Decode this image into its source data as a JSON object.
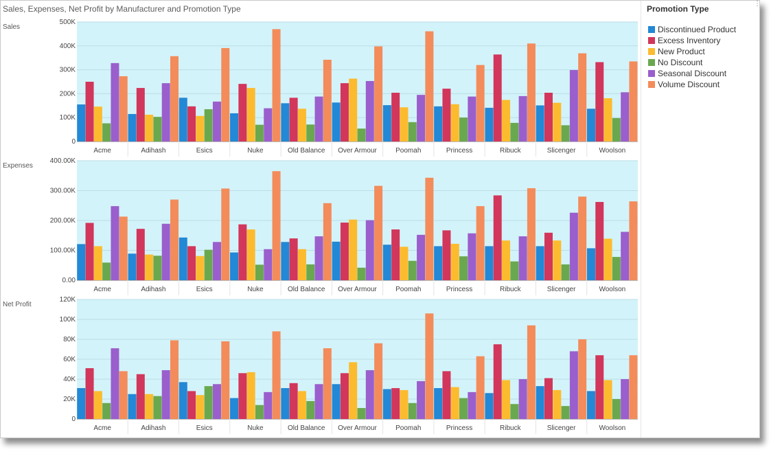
{
  "title": "Sales, Expenses, Net Profit by Manufacturer and Promotion Type",
  "legend": {
    "title": "Promotion Type",
    "items": [
      {
        "label": "Discontinued Product",
        "color": "#2388d5"
      },
      {
        "label": "Excess Inventory",
        "color": "#d2365b"
      },
      {
        "label": "New Product",
        "color": "#fcbb2f"
      },
      {
        "label": "No Discount",
        "color": "#6aa84f"
      },
      {
        "label": "Seasonal Discount",
        "color": "#9a5fcc"
      },
      {
        "label": "Volume Discount",
        "color": "#f38c5a"
      }
    ]
  },
  "plot_background": "#d3f3fa",
  "chart_data": [
    {
      "type": "bar",
      "ylabel": "Sales",
      "ylim": [
        0,
        500000
      ],
      "yticks": [
        "0",
        "100K",
        "200K",
        "300K",
        "400K",
        "500K"
      ],
      "categories": [
        "Acme",
        "Adihash",
        "Esics",
        "Nuke",
        "Old Balance",
        "Over Armour",
        "Poomah",
        "Princess",
        "Ribuck",
        "Slicenger",
        "Woolson"
      ],
      "series": [
        {
          "name": "Discontinued Product",
          "values": [
            155000,
            115000,
            183000,
            118000,
            160000,
            163000,
            152000,
            147000,
            141000,
            151000,
            137000
          ]
        },
        {
          "name": "Excess Inventory",
          "values": [
            250000,
            224000,
            147000,
            241000,
            183000,
            244000,
            204000,
            221000,
            364000,
            204000,
            332000
          ]
        },
        {
          "name": "New Product",
          "values": [
            146000,
            112000,
            107000,
            224000,
            137000,
            263000,
            143000,
            156000,
            174000,
            162000,
            181000
          ]
        },
        {
          "name": "No Discount",
          "values": [
            76000,
            103000,
            135000,
            70000,
            71000,
            54000,
            81000,
            100000,
            78000,
            68000,
            98000
          ]
        },
        {
          "name": "Seasonal Discount",
          "values": [
            328000,
            244000,
            167000,
            139000,
            188000,
            253000,
            195000,
            188000,
            190000,
            299000,
            206000
          ]
        },
        {
          "name": "Volume Discount",
          "values": [
            273000,
            357000,
            391000,
            470000,
            342000,
            398000,
            461000,
            320000,
            410000,
            369000,
            335000
          ]
        }
      ]
    },
    {
      "type": "bar",
      "ylabel": "Expenses",
      "ylim": [
        0,
        400000
      ],
      "yticks": [
        "0.00",
        "100.00K",
        "200.00K",
        "300.00K",
        "400.00K"
      ],
      "categories": [
        "Acme",
        "Adihash",
        "Esics",
        "Nuke",
        "Old Balance",
        "Over Armour",
        "Poomah",
        "Princess",
        "Ribuck",
        "Slicenger",
        "Woolson"
      ],
      "series": [
        {
          "name": "Discontinued Product",
          "values": [
            121000,
            89000,
            143000,
            93000,
            128000,
            129000,
            119000,
            114000,
            114000,
            114000,
            107000
          ]
        },
        {
          "name": "Excess Inventory",
          "values": [
            192000,
            172000,
            114000,
            187000,
            140000,
            193000,
            170000,
            167000,
            284000,
            159000,
            262000
          ]
        },
        {
          "name": "New Product",
          "values": [
            114000,
            86000,
            81000,
            170000,
            104000,
            203000,
            112000,
            122000,
            133000,
            133000,
            139000
          ]
        },
        {
          "name": "No Discount",
          "values": [
            59000,
            82000,
            102000,
            52000,
            53000,
            42000,
            65000,
            80000,
            63000,
            53000,
            78000
          ]
        },
        {
          "name": "Seasonal Discount",
          "values": [
            248000,
            189000,
            128000,
            104000,
            147000,
            201000,
            152000,
            157000,
            147000,
            226000,
            162000
          ]
        },
        {
          "name": "Volume Discount",
          "values": [
            213000,
            270000,
            307000,
            365000,
            258000,
            316000,
            343000,
            248000,
            308000,
            280000,
            264000
          ]
        }
      ]
    },
    {
      "type": "bar",
      "ylabel": "Net Profit",
      "ylim": [
        0,
        120000
      ],
      "yticks": [
        "0",
        "20K",
        "40K",
        "60K",
        "80K",
        "100K",
        "120K"
      ],
      "categories": [
        "Acme",
        "Adihash",
        "Esics",
        "Nuke",
        "Old Balance",
        "Over Armour",
        "Poomah",
        "Princess",
        "Ribuck",
        "Slicenger",
        "Woolson"
      ],
      "series": [
        {
          "name": "Discontinued Product",
          "values": [
            31000,
            25000,
            37000,
            21000,
            31000,
            35000,
            30000,
            31000,
            26000,
            33000,
            28000
          ]
        },
        {
          "name": "Excess Inventory",
          "values": [
            51000,
            45000,
            28000,
            46000,
            36000,
            46000,
            31000,
            48000,
            75000,
            41000,
            64000
          ]
        },
        {
          "name": "New Product",
          "values": [
            28000,
            25000,
            24000,
            47000,
            28000,
            57000,
            29000,
            32000,
            39000,
            29000,
            39000
          ]
        },
        {
          "name": "No Discount",
          "values": [
            16000,
            23000,
            33000,
            14000,
            18000,
            11000,
            16000,
            21000,
            15000,
            13000,
            20000
          ]
        },
        {
          "name": "Seasonal Discount",
          "values": [
            71000,
            49000,
            35000,
            27000,
            35000,
            49000,
            38000,
            27000,
            40000,
            68000,
            40000
          ]
        },
        {
          "name": "Volume Discount",
          "values": [
            48000,
            79000,
            78000,
            88000,
            71000,
            76000,
            106000,
            63000,
            94000,
            80000,
            64000
          ]
        }
      ]
    }
  ]
}
